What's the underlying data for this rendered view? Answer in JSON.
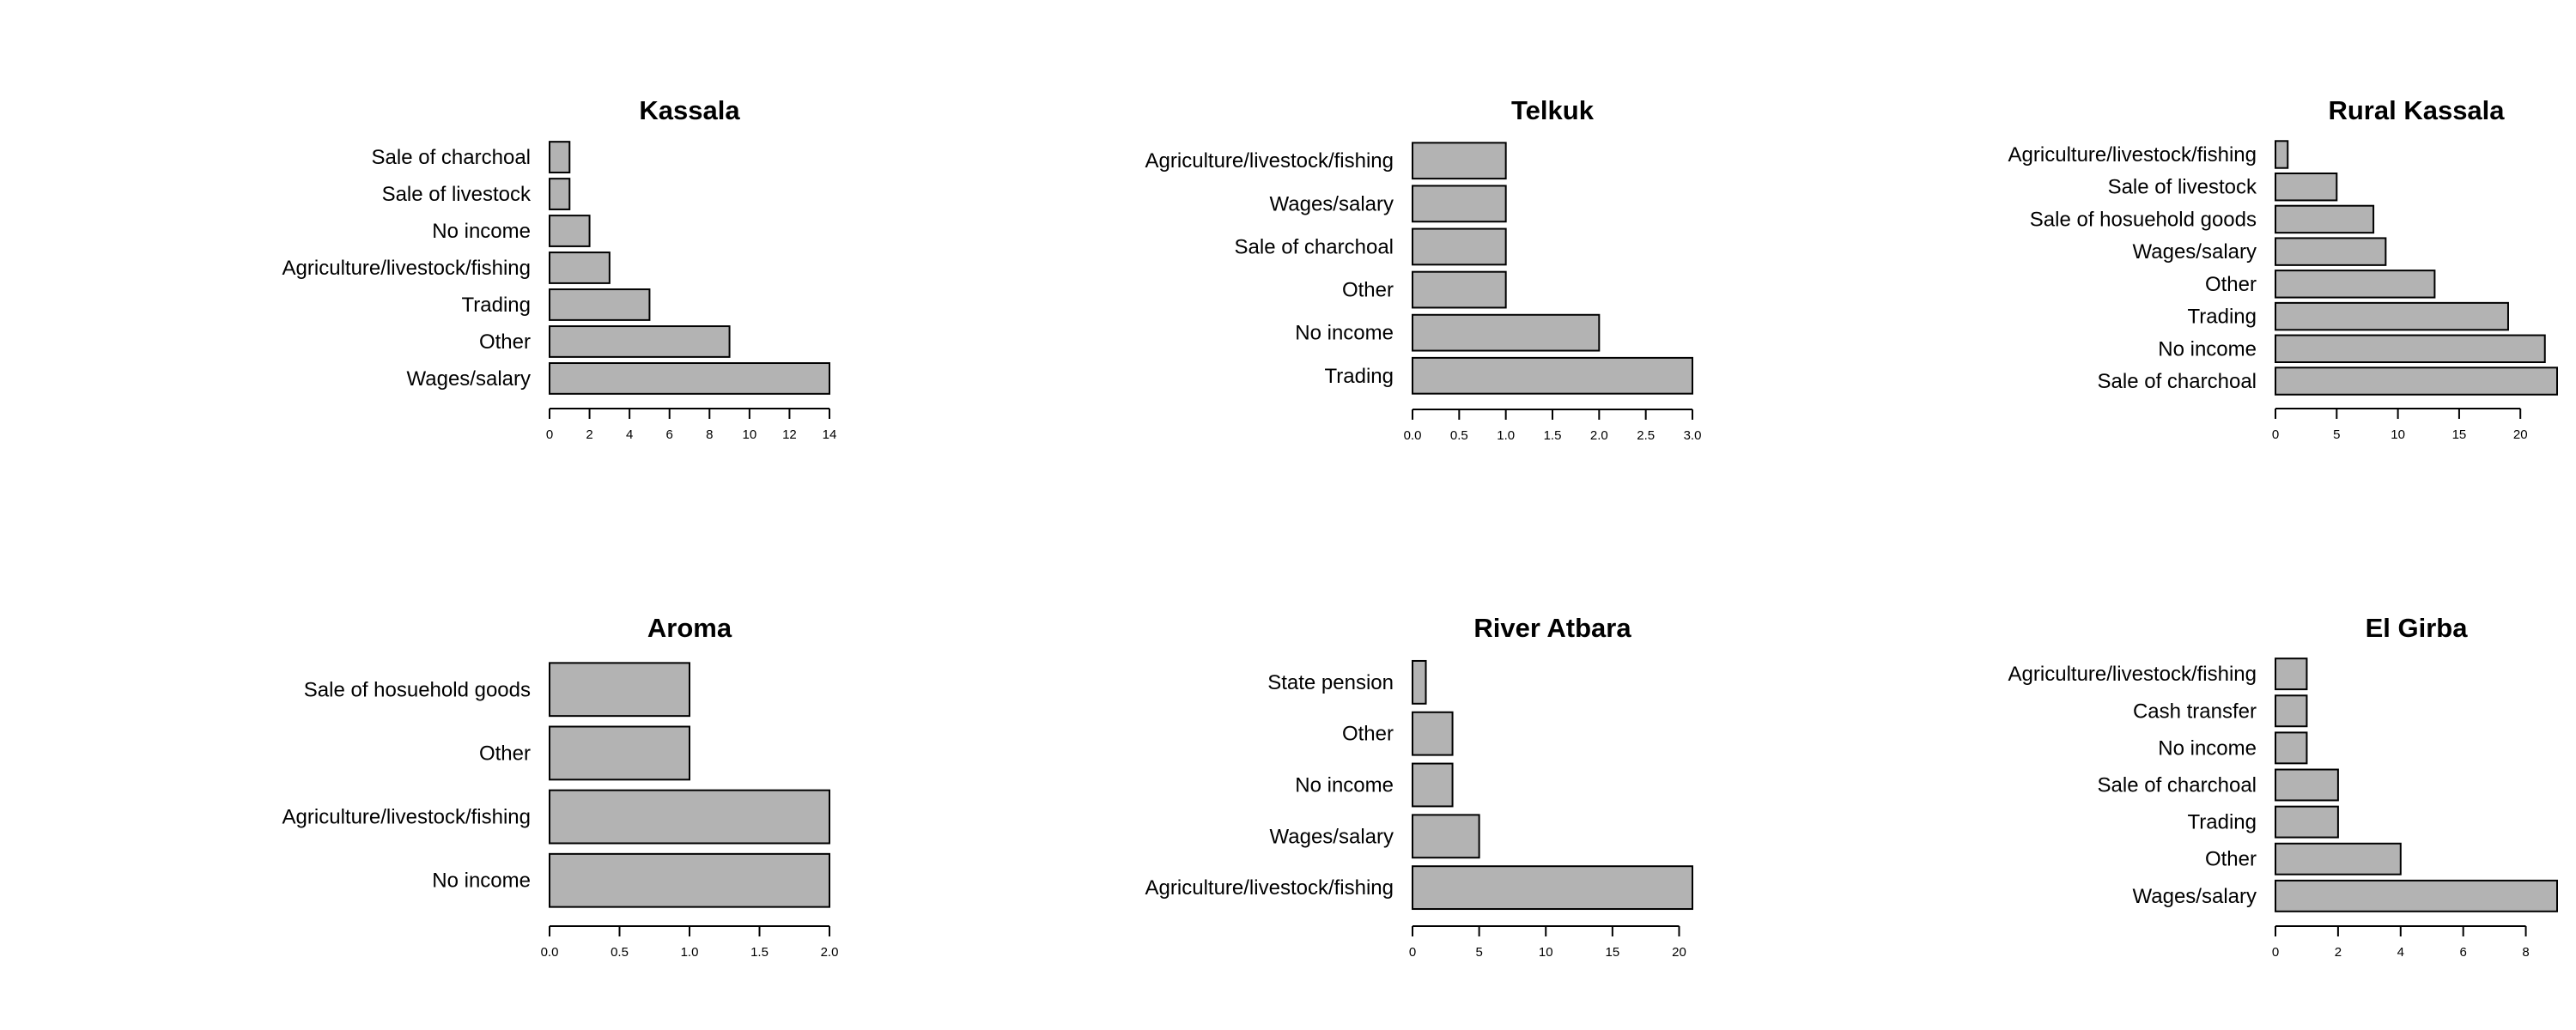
{
  "bar_fill": "#b3b3b3",
  "chart_data": [
    {
      "type": "bar",
      "orientation": "horizontal",
      "title": "Kassala",
      "categories": [
        "Wages/salary",
        "Other",
        "Trading",
        "Agriculture/livestock/fishing",
        "No income",
        "Sale of livestock",
        "Sale of charchoal"
      ],
      "values": [
        14,
        9,
        5,
        3,
        2,
        1,
        1
      ],
      "xlim": [
        0,
        14
      ],
      "xticks": [
        "0",
        "2",
        "4",
        "6",
        "8",
        "10",
        "12",
        "14"
      ]
    },
    {
      "type": "bar",
      "orientation": "horizontal",
      "title": "Telkuk",
      "categories": [
        "Trading",
        "No income",
        "Other",
        "Sale of charchoal",
        "Wages/salary",
        "Agriculture/livestock/fishing"
      ],
      "values": [
        3,
        2,
        1,
        1,
        1,
        1
      ],
      "xlim": [
        0,
        3
      ],
      "xticks": [
        "0.0",
        "0.5",
        "1.0",
        "1.5",
        "2.0",
        "2.5",
        "3.0"
      ]
    },
    {
      "type": "bar",
      "orientation": "horizontal",
      "title": "Rural Kassala",
      "categories": [
        "Sale of charchoal",
        "No income",
        "Trading",
        "Other",
        "Wages/salary",
        "Sale of hosuehold goods",
        "Sale of livestock",
        "Agriculture/livestock/fishing"
      ],
      "values": [
        23,
        22,
        19,
        13,
        9,
        8,
        5,
        1
      ],
      "xlim": [
        0,
        23
      ],
      "xticks": [
        "0",
        "5",
        "10",
        "15",
        "20"
      ]
    },
    {
      "type": "bar",
      "orientation": "horizontal",
      "title": "Aroma",
      "categories": [
        "No income",
        "Agriculture/livestock/fishing",
        "Other",
        "Sale of hosuehold goods"
      ],
      "values": [
        2,
        2,
        1,
        1
      ],
      "xlim": [
        0,
        2
      ],
      "xticks": [
        "0.0",
        "0.5",
        "1.0",
        "1.5",
        "2.0"
      ]
    },
    {
      "type": "bar",
      "orientation": "horizontal",
      "title": "River Atbara",
      "categories": [
        "Agriculture/livestock/fishing",
        "Wages/salary",
        "No income",
        "Other",
        "State pension"
      ],
      "values": [
        21,
        5,
        3,
        3,
        1
      ],
      "xlim": [
        0,
        21
      ],
      "xticks": [
        "0",
        "5",
        "10",
        "15",
        "20"
      ]
    },
    {
      "type": "bar",
      "orientation": "horizontal",
      "title": "El Girba",
      "categories": [
        "Wages/salary",
        "Other",
        "Trading",
        "Sale of charchoal",
        "No income",
        "Cash transfer",
        "Agriculture/livestock/fishing"
      ],
      "values": [
        9,
        4,
        2,
        2,
        1,
        1,
        1
      ],
      "xlim": [
        0,
        9
      ],
      "xticks": [
        "0",
        "2",
        "4",
        "6",
        "8"
      ]
    }
  ]
}
